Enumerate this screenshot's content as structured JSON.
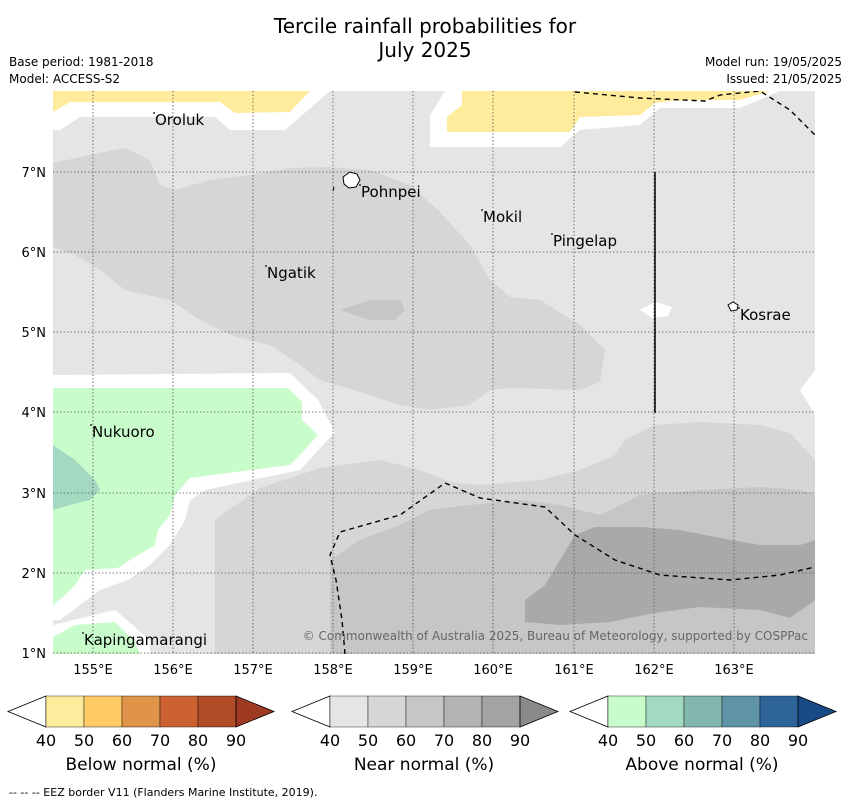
{
  "title": {
    "line1": "Tercile rainfall probabilities for",
    "line2": "July 2025"
  },
  "meta": {
    "base_period": "Base period: 1981-2018",
    "model": "Model: ACCESS-S2",
    "model_run": "Model run: 19/05/2025",
    "issued": "Issued: 21/05/2025"
  },
  "axes": {
    "lon_ticks": [
      "155°E",
      "156°E",
      "157°E",
      "158°E",
      "159°E",
      "160°E",
      "161°E",
      "162°E",
      "163°E"
    ],
    "lat_ticks": [
      "7°N",
      "6°N",
      "5°N",
      "4°N",
      "3°N",
      "2°N",
      "1°N"
    ]
  },
  "places": [
    {
      "name": "Oroluk"
    },
    {
      "name": "Pohnpei"
    },
    {
      "name": "Mokil"
    },
    {
      "name": "Pingelap"
    },
    {
      "name": "Ngatik"
    },
    {
      "name": "Kosrae"
    },
    {
      "name": "Nukuoro"
    },
    {
      "name": "Kapingamarangi"
    }
  ],
  "copyright": "© Commonwealth of Australia 2025, Bureau of Meteorology, supported by COSPPac",
  "colorbars": [
    {
      "label": "Below normal (%)",
      "ticks": [
        "40",
        "50",
        "60",
        "70",
        "80",
        "90"
      ],
      "colors": [
        "#ffffff",
        "#ffeb9c",
        "#fecb66",
        "#e0944a",
        "#cc6232",
        "#b04c28",
        "#9e3a22"
      ]
    },
    {
      "label": "Near normal (%)",
      "ticks": [
        "40",
        "50",
        "60",
        "70",
        "80",
        "90"
      ],
      "colors": [
        "#ffffff",
        "#e5e5e5",
        "#d6d6d6",
        "#c6c6c6",
        "#b3b3b3",
        "#a3a3a3",
        "#8a8a8a"
      ]
    },
    {
      "label": "Above normal (%)",
      "ticks": [
        "40",
        "50",
        "60",
        "70",
        "80",
        "90"
      ],
      "colors": [
        "#ffffff",
        "#c8fccb",
        "#a3d9c1",
        "#82b7b0",
        "#5f94a6",
        "#2d6498",
        "#184a85"
      ]
    }
  ],
  "footer": "--  --  -- EEZ border V11 (Flanders Marine Institute, 2019)."
}
